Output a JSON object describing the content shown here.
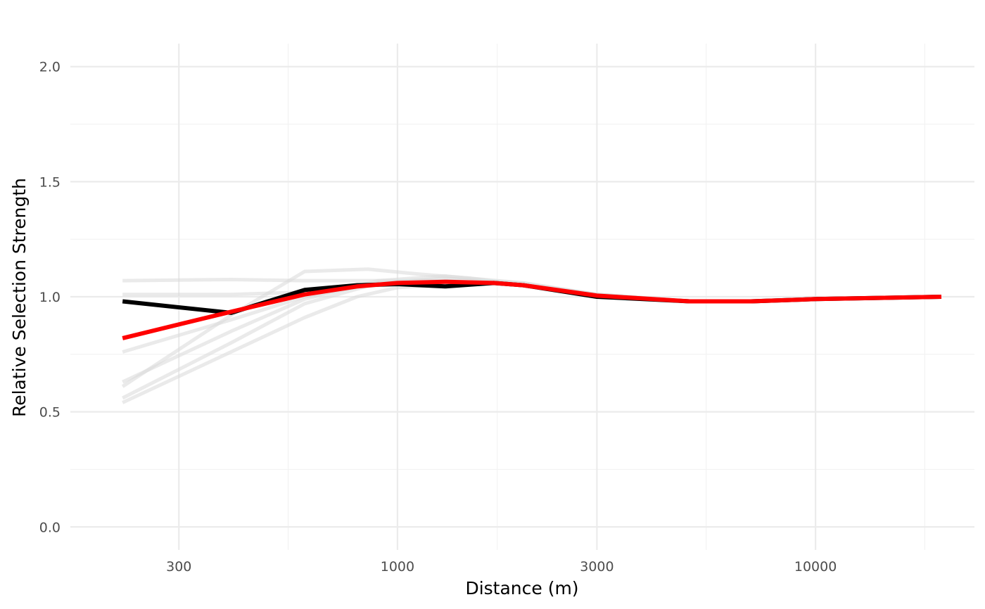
{
  "chart_data": {
    "type": "line",
    "title": "",
    "xlabel": "Distance (m)",
    "ylabel": "Relative Selection Strength",
    "x_scale": "log10",
    "xlim": [
      165,
      24000
    ],
    "ylim": [
      -0.1,
      2.1
    ],
    "x_ticks": [
      300,
      1000,
      3000,
      10000
    ],
    "x_tick_labels": [
      "300",
      "1000",
      "3000",
      "10000"
    ],
    "y_ticks": [
      0.0,
      0.5,
      1.0,
      1.5,
      2.0
    ],
    "y_tick_labels": [
      "0.0",
      "0.5",
      "1.0",
      "1.5",
      "2.0"
    ],
    "grid": true,
    "legend": "none",
    "series": [
      {
        "role": "replicate",
        "color": "#d9d9d9",
        "x": [
          220,
          600,
          800,
          1000,
          1500,
          2000,
          3000,
          5000,
          7000,
          10000,
          20000
        ],
        "y": [
          0.54,
          0.91,
          1.0,
          1.04,
          1.06,
          1.05,
          1.0,
          0.98,
          0.98,
          0.99,
          1.0
        ]
      },
      {
        "role": "replicate",
        "color": "#d9d9d9",
        "x": [
          220,
          400,
          600,
          900,
          1300,
          2000,
          3000,
          5000,
          7000,
          10000,
          20000
        ],
        "y": [
          0.56,
          0.8,
          0.97,
          1.06,
          1.08,
          1.06,
          1.01,
          0.98,
          0.98,
          0.99,
          1.0
        ]
      },
      {
        "role": "replicate",
        "color": "#d9d9d9",
        "x": [
          220,
          400,
          600,
          850,
          1100,
          1500,
          2000,
          3000,
          5000,
          7000,
          10000,
          20000
        ],
        "y": [
          0.61,
          0.92,
          1.11,
          1.12,
          1.1,
          1.08,
          1.05,
          1.01,
          0.98,
          0.98,
          0.99,
          1.0
        ]
      },
      {
        "role": "replicate",
        "color": "#d9d9d9",
        "x": [
          220,
          400,
          600,
          900,
          1300,
          2000,
          3000,
          5000,
          7000,
          10000,
          20000
        ],
        "y": [
          0.63,
          0.85,
          0.99,
          1.07,
          1.09,
          1.06,
          1.01,
          0.98,
          0.98,
          0.99,
          1.0
        ]
      },
      {
        "role": "replicate",
        "color": "#d9d9d9",
        "x": [
          220,
          400,
          600,
          900,
          1300,
          2000,
          3000,
          5000,
          7000,
          10000,
          20000
        ],
        "y": [
          0.76,
          0.9,
          1.0,
          1.06,
          1.07,
          1.05,
          1.01,
          0.98,
          0.98,
          0.99,
          1.0
        ]
      },
      {
        "role": "replicate",
        "color": "#d9d9d9",
        "x": [
          220,
          400,
          600,
          900,
          1300,
          2000,
          3000,
          5000,
          7000,
          10000,
          20000
        ],
        "y": [
          1.01,
          1.01,
          1.02,
          1.05,
          1.07,
          1.05,
          1.01,
          0.98,
          0.98,
          0.99,
          1.0
        ]
      },
      {
        "role": "replicate",
        "color": "#d9d9d9",
        "x": [
          220,
          400,
          600,
          900,
          1300,
          2000,
          3000,
          5000,
          7000,
          10000,
          20000
        ],
        "y": [
          1.07,
          1.075,
          1.07,
          1.07,
          1.07,
          1.05,
          1.01,
          0.98,
          0.98,
          0.99,
          1.0
        ]
      },
      {
        "role": "observed",
        "color": "#000000",
        "x": [
          220,
          400,
          600,
          800,
          1000,
          1300,
          1700,
          2000,
          3000,
          5000,
          7000,
          10000,
          20000
        ],
        "y": [
          0.98,
          0.93,
          1.03,
          1.05,
          1.055,
          1.045,
          1.06,
          1.05,
          1.0,
          0.98,
          0.98,
          0.99,
          1.0
        ]
      },
      {
        "role": "smoothed",
        "color": "#ff0000",
        "x": [
          220,
          300,
          400,
          600,
          800,
          1000,
          1300,
          1700,
          2000,
          3000,
          5000,
          7000,
          10000,
          20000
        ],
        "y": [
          0.82,
          0.88,
          0.935,
          1.01,
          1.045,
          1.06,
          1.065,
          1.06,
          1.05,
          1.005,
          0.98,
          0.98,
          0.99,
          1.0
        ]
      }
    ]
  }
}
